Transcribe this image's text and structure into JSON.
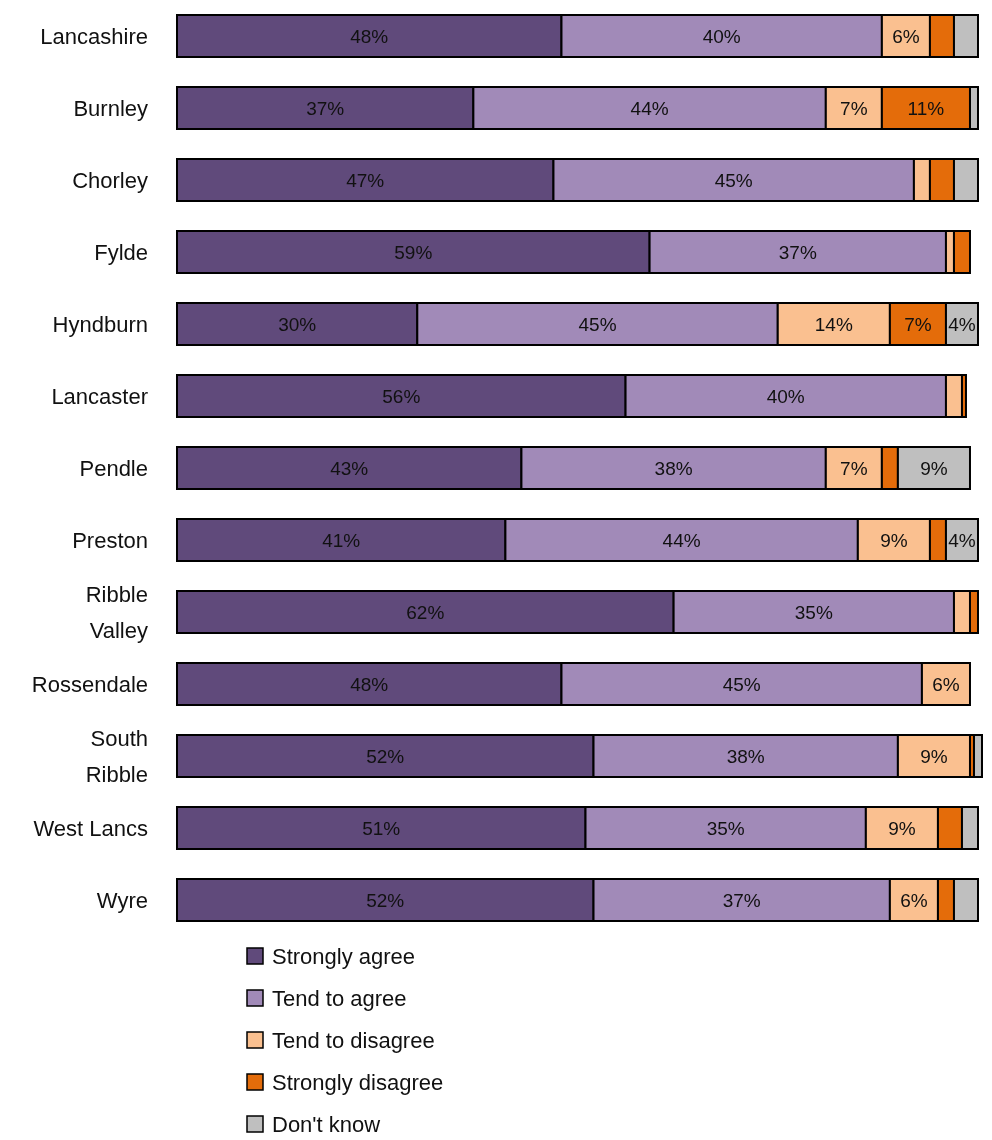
{
  "chart_data": {
    "type": "bar",
    "orientation": "horizontal",
    "stacked": true,
    "tick_labels": "y",
    "legend": "bottom",
    "categories": [
      "Lancashire",
      "Burnley",
      "Chorley",
      "Fylde",
      "Hyndburn",
      "Lancaster",
      "Pendle",
      "Preston",
      "Ribble Valley",
      "Rossendale",
      "South Ribble",
      "West Lancs",
      "Wyre"
    ],
    "series": [
      {
        "name": "Strongly agree",
        "color": "#604a7b",
        "values": [
          48,
          37,
          47,
          59,
          30,
          56,
          43,
          41,
          62,
          48,
          52,
          51,
          52
        ],
        "value_labels": [
          "48%",
          "37%",
          "47%",
          "59%",
          "30%",
          "56%",
          "43%",
          "41%",
          "62%",
          "48%",
          "52%",
          "51%",
          "52%"
        ]
      },
      {
        "name": "Tend to agree",
        "color": "#a18ab8",
        "values": [
          40,
          44,
          45,
          37,
          45,
          40,
          38,
          44,
          35,
          45,
          38,
          35,
          37
        ],
        "value_labels": [
          "40%",
          "44%",
          "45%",
          "37%",
          "45%",
          "40%",
          "38%",
          "44%",
          "35%",
          "45%",
          "38%",
          "35%",
          "37%"
        ]
      },
      {
        "name": "Tend to disagree",
        "color": "#fac090",
        "values": [
          6,
          7,
          2,
          1,
          14,
          2,
          7,
          9,
          2,
          6,
          9,
          9,
          6
        ],
        "value_labels": [
          "6%",
          "7%",
          null,
          null,
          "14%",
          null,
          "7%",
          "9%",
          null,
          "6%",
          "9%",
          "9%",
          "6%"
        ]
      },
      {
        "name": "Strongly disagree",
        "color": "#e46c0a",
        "values": [
          3,
          11,
          3,
          2,
          7,
          0.5,
          2,
          2,
          1,
          null,
          0.5,
          3,
          2
        ],
        "value_labels": [
          null,
          "11%",
          null,
          null,
          "7%",
          null,
          null,
          null,
          null,
          null,
          null,
          null,
          null
        ]
      },
      {
        "name": "Don't know",
        "color": "#bfbfbf",
        "values": [
          3,
          1,
          3,
          null,
          4,
          null,
          9,
          4,
          null,
          null,
          1,
          2,
          3
        ],
        "value_labels": [
          null,
          null,
          null,
          null,
          "4%",
          null,
          "9%",
          "4%",
          null,
          null,
          null,
          null,
          null
        ]
      }
    ]
  }
}
